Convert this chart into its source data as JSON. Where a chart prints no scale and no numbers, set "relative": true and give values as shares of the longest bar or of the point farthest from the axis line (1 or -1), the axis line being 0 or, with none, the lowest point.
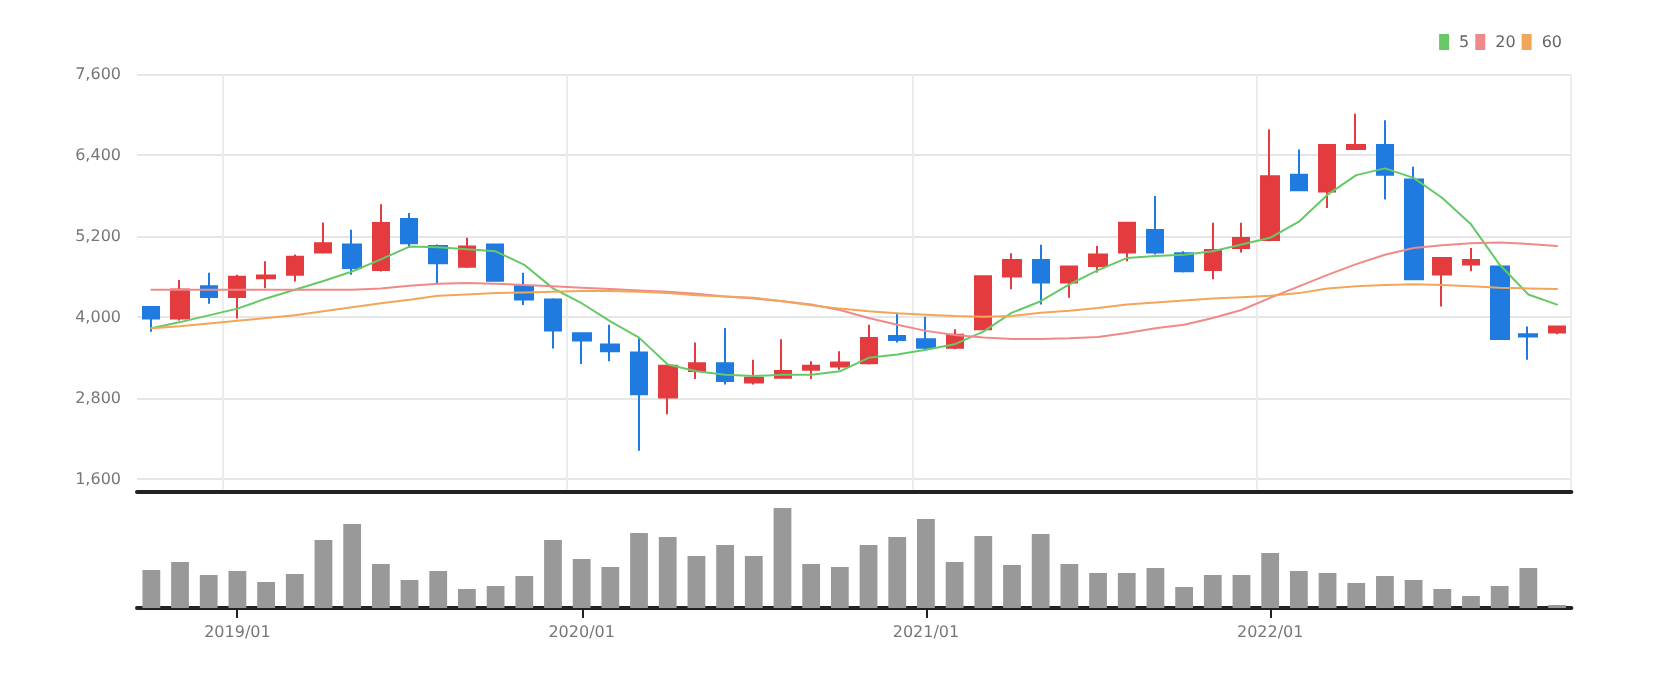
{
  "chart_data": [
    {
      "type": "candlestick",
      "categories": [
        null,
        null,
        null,
        "2019/01",
        null,
        null,
        null,
        null,
        null,
        null,
        null,
        null,
        null,
        null,
        null,
        "2020/01",
        null,
        null,
        null,
        null,
        null,
        null,
        null,
        null,
        null,
        null,
        null,
        "2021/01",
        null,
        null,
        null,
        null,
        null,
        null,
        null,
        null,
        null,
        null,
        null,
        "2022/01",
        null,
        null,
        null,
        null,
        null,
        null,
        null,
        null,
        null,
        null
      ],
      "ohlc": [
        [
          4144,
          4144,
          3776,
          3975
        ],
        [
          3975,
          4543,
          3945,
          4403
        ],
        [
          4453,
          4652,
          4194,
          4294
        ],
        [
          4294,
          4622,
          3975,
          4592
        ],
        [
          4572,
          4821,
          4423,
          4612
        ],
        [
          4622,
          4921,
          4522,
          4891
        ],
        [
          4951,
          5399,
          4951,
          5090
        ],
        [
          5070,
          5290,
          4622,
          4722
        ],
        [
          4692,
          5668,
          4672,
          5389
        ],
        [
          5449,
          5539,
          5020,
          5090
        ],
        [
          5050,
          5070,
          4473,
          4792
        ],
        [
          4742,
          5170,
          4722,
          5040
        ],
        [
          5070,
          5070,
          4533,
          4533
        ],
        [
          4453,
          4652,
          4174,
          4254
        ],
        [
          4254,
          4274,
          3527,
          3796
        ],
        [
          3756,
          3756,
          3298,
          3647
        ],
        [
          3587,
          3882,
          3341,
          3488
        ],
        [
          3469,
          3685,
          2012,
          2849
        ],
        [
          2800,
          3272,
          2554,
          3272
        ],
        [
          3193,
          3616,
          3075,
          3311
        ],
        [
          3311,
          3833,
          2996,
          3046
        ],
        [
          3026,
          3360,
          2996,
          3095
        ],
        [
          3095,
          3665,
          3095,
          3193
        ],
        [
          3213,
          3341,
          3075,
          3272
        ],
        [
          3262,
          3488,
          3213,
          3321
        ],
        [
          3311,
          3882,
          3291,
          3685
        ],
        [
          3715,
          4059,
          3616,
          3656
        ],
        [
          3665,
          4000,
          3518,
          3538
        ],
        [
          3538,
          3813,
          3518,
          3734
        ],
        [
          3813,
          4600,
          3813,
          4600
        ],
        [
          4596,
          4941,
          4408,
          4842
        ],
        [
          4842,
          5069,
          4182,
          4507
        ],
        [
          4507,
          4744,
          4280,
          4744
        ],
        [
          4753,
          5049,
          4655,
          4921
        ],
        [
          4951,
          5394,
          4822,
          5394
        ],
        [
          5286,
          5789,
          4921,
          4951
        ],
        [
          4941,
          4970,
          4655,
          4675
        ],
        [
          4694,
          5394,
          4556,
          4990
        ],
        [
          5020,
          5394,
          4951,
          5167
        ],
        [
          5138,
          6775,
          5118,
          6084
        ],
        [
          6104,
          6479,
          5877,
          5877
        ],
        [
          5858,
          6548,
          5611,
          6548
        ],
        [
          6489,
          7011,
          6489,
          6548
        ],
        [
          6548,
          6913,
          5739,
          6104
        ],
        [
          6035,
          6223,
          4556,
          4556
        ],
        [
          4625,
          4872,
          4152,
          4872
        ],
        [
          4773,
          5020,
          4675,
          4842
        ],
        [
          4744,
          4744,
          3669,
          3669
        ],
        [
          3738,
          3856,
          3363,
          3708
        ],
        [
          3767,
          3856,
          3738,
          3856
        ]
      ],
      "colors": [
        "#1f7be0",
        "#e43b3f",
        "#1f7be0",
        "#e43b3f",
        "#e43b3f",
        "#e43b3f",
        "#e43b3f",
        "#1f7be0",
        "#e43b3f",
        "#1f7be0",
        "#1f7be0",
        "#e43b3f",
        "#1f7be0",
        "#1f7be0",
        "#1f7be0",
        "#1f7be0",
        "#1f7be0",
        "#1f7be0",
        "#e43b3f",
        "#e43b3f",
        "#1f7be0",
        "#e43b3f",
        "#e43b3f",
        "#e43b3f",
        "#e43b3f",
        "#e43b3f",
        "#1f7be0",
        "#1f7be0",
        "#e43b3f",
        "#e43b3f",
        "#e43b3f",
        "#1f7be0",
        "#e43b3f",
        "#e43b3f",
        "#e43b3f",
        "#1f7be0",
        "#1f7be0",
        "#e43b3f",
        "#e43b3f",
        "#e43b3f",
        "#1f7be0",
        "#e43b3f",
        "#e43b3f",
        "#1f7be0",
        "#1f7be0",
        "#e43b3f",
        "#e43b3f",
        "#1f7be0",
        "#1f7be0",
        "#e43b3f"
      ],
      "series": [
        {
          "type": "line",
          "name": "5",
          "color": "#66c966",
          "values": [
            3830,
            3920,
            4020,
            4120,
            4270,
            4400,
            4530,
            4670,
            4850,
            5040,
            5030,
            5000,
            4970,
            4770,
            4420,
            4200,
            3930,
            3690,
            3290,
            3190,
            3140,
            3120,
            3140,
            3140,
            3190,
            3390,
            3440,
            3510,
            3590,
            3780,
            4060,
            4230,
            4480,
            4690,
            4870,
            4900,
            4920,
            4970,
            5070,
            5170,
            5410,
            5810,
            6100,
            6200,
            6060,
            5760,
            5370,
            4770,
            4330,
            4180
          ]
        },
        {
          "type": "line",
          "name": "20",
          "color": "#f08a8a",
          "values": [
            4400,
            4400,
            4400,
            4400,
            4400,
            4400,
            4400,
            4400,
            4420,
            4460,
            4490,
            4500,
            4490,
            4470,
            4450,
            4430,
            4410,
            4390,
            4370,
            4340,
            4300,
            4270,
            4230,
            4180,
            4100,
            3980,
            3880,
            3790,
            3730,
            3690,
            3670,
            3670,
            3680,
            3700,
            3760,
            3830,
            3880,
            3980,
            4100,
            4280,
            4450,
            4620,
            4780,
            4920,
            5020,
            5060,
            5090,
            5100,
            5080,
            5050
          ]
        },
        {
          "type": "line",
          "name": "60",
          "color": "#f2a65a",
          "values": [
            3830,
            3860,
            3900,
            3940,
            3980,
            4020,
            4080,
            4140,
            4200,
            4250,
            4310,
            4330,
            4350,
            4360,
            4370,
            4380,
            4380,
            4370,
            4350,
            4320,
            4300,
            4280,
            4230,
            4170,
            4120,
            4080,
            4050,
            4030,
            4010,
            4000,
            4010,
            4060,
            4090,
            4130,
            4180,
            4210,
            4240,
            4270,
            4290,
            4310,
            4350,
            4420,
            4450,
            4470,
            4480,
            4470,
            4450,
            4430,
            4420,
            4410
          ]
        }
      ],
      "ylim": [
        1400,
        7600
      ],
      "yticks": [
        {
          "value": 1600,
          "label": "1,600"
        },
        {
          "value": 2800,
          "label": "2,800"
        },
        {
          "value": 4000,
          "label": "4,000"
        },
        {
          "value": 5200,
          "label": "5,200"
        },
        {
          "value": 6400,
          "label": "6,400"
        },
        {
          "value": 7600,
          "label": "7,600"
        }
      ],
      "grid": true,
      "legend": "top right",
      "marker": "none",
      "tick_labels": "y"
    },
    {
      "type": "bar",
      "categories": [
        null,
        null,
        null,
        "2019/01",
        null,
        null,
        null,
        null,
        null,
        null,
        null,
        null,
        null,
        null,
        null,
        "2020/01",
        null,
        null,
        null,
        null,
        null,
        null,
        null,
        null,
        null,
        null,
        null,
        "2021/01",
        null,
        null,
        null,
        null,
        null,
        null,
        null,
        null,
        null,
        null,
        null,
        "2022/01",
        null,
        null,
        null,
        null,
        null,
        null,
        null,
        null,
        null,
        null
      ],
      "values": [
        0.38,
        0.46,
        0.33,
        0.37,
        0.26,
        0.34,
        0.68,
        0.84,
        0.44,
        0.28,
        0.37,
        0.19,
        0.22,
        0.32,
        0.68,
        0.49,
        0.41,
        0.75,
        0.71,
        0.52,
        0.63,
        0.52,
        1,
        0.44,
        0.41,
        0.63,
        0.71,
        0.89,
        0.46,
        0.72,
        0.43,
        0.74,
        0.44,
        0.35,
        0.35,
        0.4,
        0.21,
        0.33,
        0.33,
        0.55,
        0.37,
        0.35,
        0.25,
        0.32,
        0.28,
        0.19,
        0.12,
        0.22,
        0.4,
        0.03
      ],
      "color": "#999999",
      "relative": true,
      "tick_labels": "x"
    }
  ]
}
